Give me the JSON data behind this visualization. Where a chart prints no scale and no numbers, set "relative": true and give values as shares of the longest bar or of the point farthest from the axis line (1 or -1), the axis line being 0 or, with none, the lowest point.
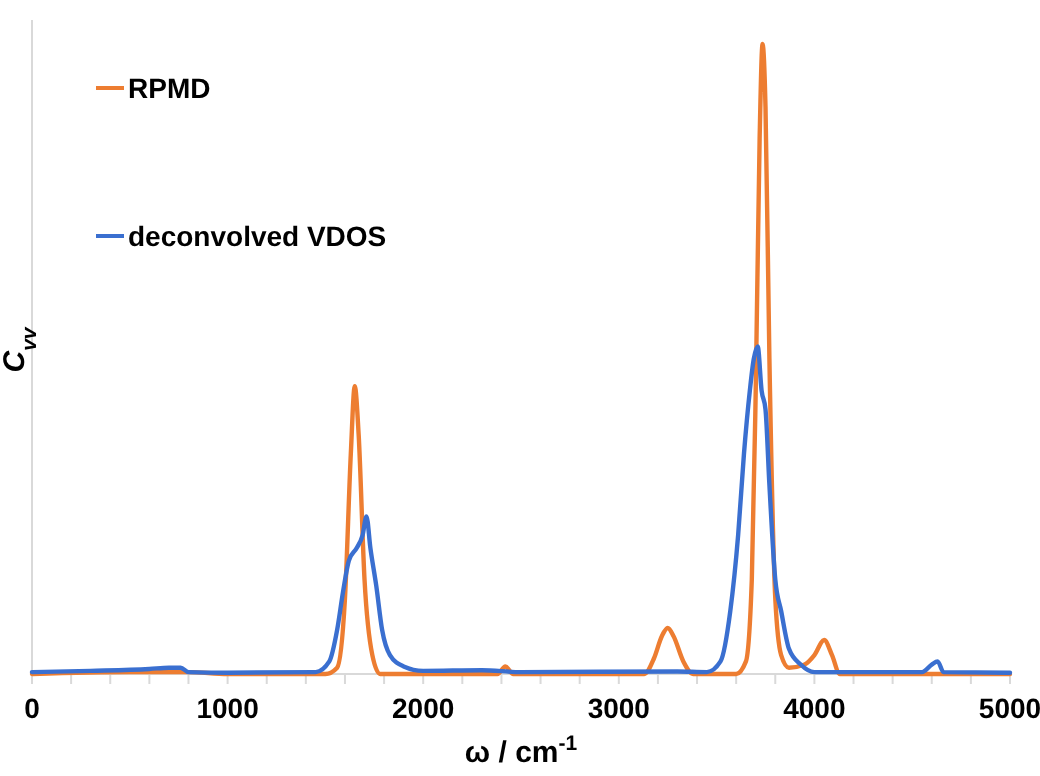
{
  "chart_data": {
    "type": "line",
    "xlabel": "ω / cm$^{-1}$",
    "ylabel": "C$_{vv}$",
    "relative": true,
    "xlim": [
      0,
      5000
    ],
    "xticks": [
      0,
      {
        "value": 200,
        "label": null
      },
      {
        "value": 400,
        "label": null
      },
      {
        "value": 600,
        "label": null
      },
      {
        "value": 800,
        "label": null
      },
      1000,
      {
        "value": 1200,
        "label": null
      },
      {
        "value": 1400,
        "label": null
      },
      {
        "value": 1600,
        "label": null
      },
      {
        "value": 1800,
        "label": null
      },
      2000,
      {
        "value": 2200,
        "label": null
      },
      {
        "value": 2400,
        "label": null
      },
      {
        "value": 2600,
        "label": null
      },
      {
        "value": 2800,
        "label": null
      },
      3000,
      {
        "value": 3200,
        "label": null
      },
      {
        "value": 3400,
        "label": null
      },
      {
        "value": 3600,
        "label": null
      },
      {
        "value": 3800,
        "label": null
      },
      4000,
      {
        "value": 4200,
        "label": null
      },
      {
        "value": 4400,
        "label": null
      },
      {
        "value": 4600,
        "label": null
      },
      {
        "value": 4800,
        "label": null
      },
      5000
    ],
    "legend": "top left",
    "grid": false,
    "marker": "none",
    "line_style": "solid",
    "series": [
      {
        "name": "RPMD",
        "color": "#ed7d31",
        "x": [
          0,
          500,
          800,
          1000,
          1500,
          1560,
          1600,
          1630,
          1650,
          1670,
          1700,
          1740,
          1780,
          2380,
          2420,
          2460,
          3130,
          3180,
          3220,
          3250,
          3280,
          3330,
          3380,
          3600,
          3650,
          3680,
          3700,
          3720,
          3735,
          3750,
          3770,
          3800,
          3830,
          3870,
          3950,
          4000,
          4050,
          4090,
          4130,
          5000
        ],
        "values": [
          0,
          0.003,
          0.003,
          0,
          0,
          0.01,
          0.12,
          0.35,
          0.457,
          0.38,
          0.15,
          0.03,
          0,
          0,
          0.012,
          0,
          0,
          0.025,
          0.06,
          0.073,
          0.06,
          0.02,
          0,
          0,
          0.02,
          0.15,
          0.45,
          0.85,
          1,
          0.9,
          0.5,
          0.12,
          0.03,
          0.01,
          0.015,
          0.03,
          0.054,
          0.03,
          0,
          0
        ]
      },
      {
        "name": "deconvolved VDOS",
        "color": "#3a6fd0",
        "x": [
          0,
          300,
          600,
          700,
          760,
          800,
          1000,
          1450,
          1520,
          1560,
          1590,
          1620,
          1660,
          1690,
          1710,
          1730,
          1760,
          1790,
          1830,
          1900,
          2000,
          2300,
          2500,
          3300,
          3450,
          3520,
          3570,
          3610,
          3640,
          3670,
          3690,
          3710,
          3730,
          3750,
          3770,
          3800,
          3830,
          3870,
          3930,
          4000,
          4550,
          4600,
          4630,
          4660,
          5000
        ],
        "values": [
          0.003,
          0.005,
          0.008,
          0.01,
          0.01,
          0.003,
          0.002,
          0.003,
          0.02,
          0.07,
          0.13,
          0.18,
          0.2,
          0.22,
          0.25,
          0.2,
          0.14,
          0.07,
          0.03,
          0.012,
          0.005,
          0.006,
          0.003,
          0.004,
          0.003,
          0.02,
          0.1,
          0.22,
          0.35,
          0.45,
          0.5,
          0.52,
          0.45,
          0.42,
          0.3,
          0.15,
          0.1,
          0.04,
          0.015,
          0.003,
          0.003,
          0.015,
          0.02,
          0.003,
          0.002
        ]
      }
    ]
  }
}
